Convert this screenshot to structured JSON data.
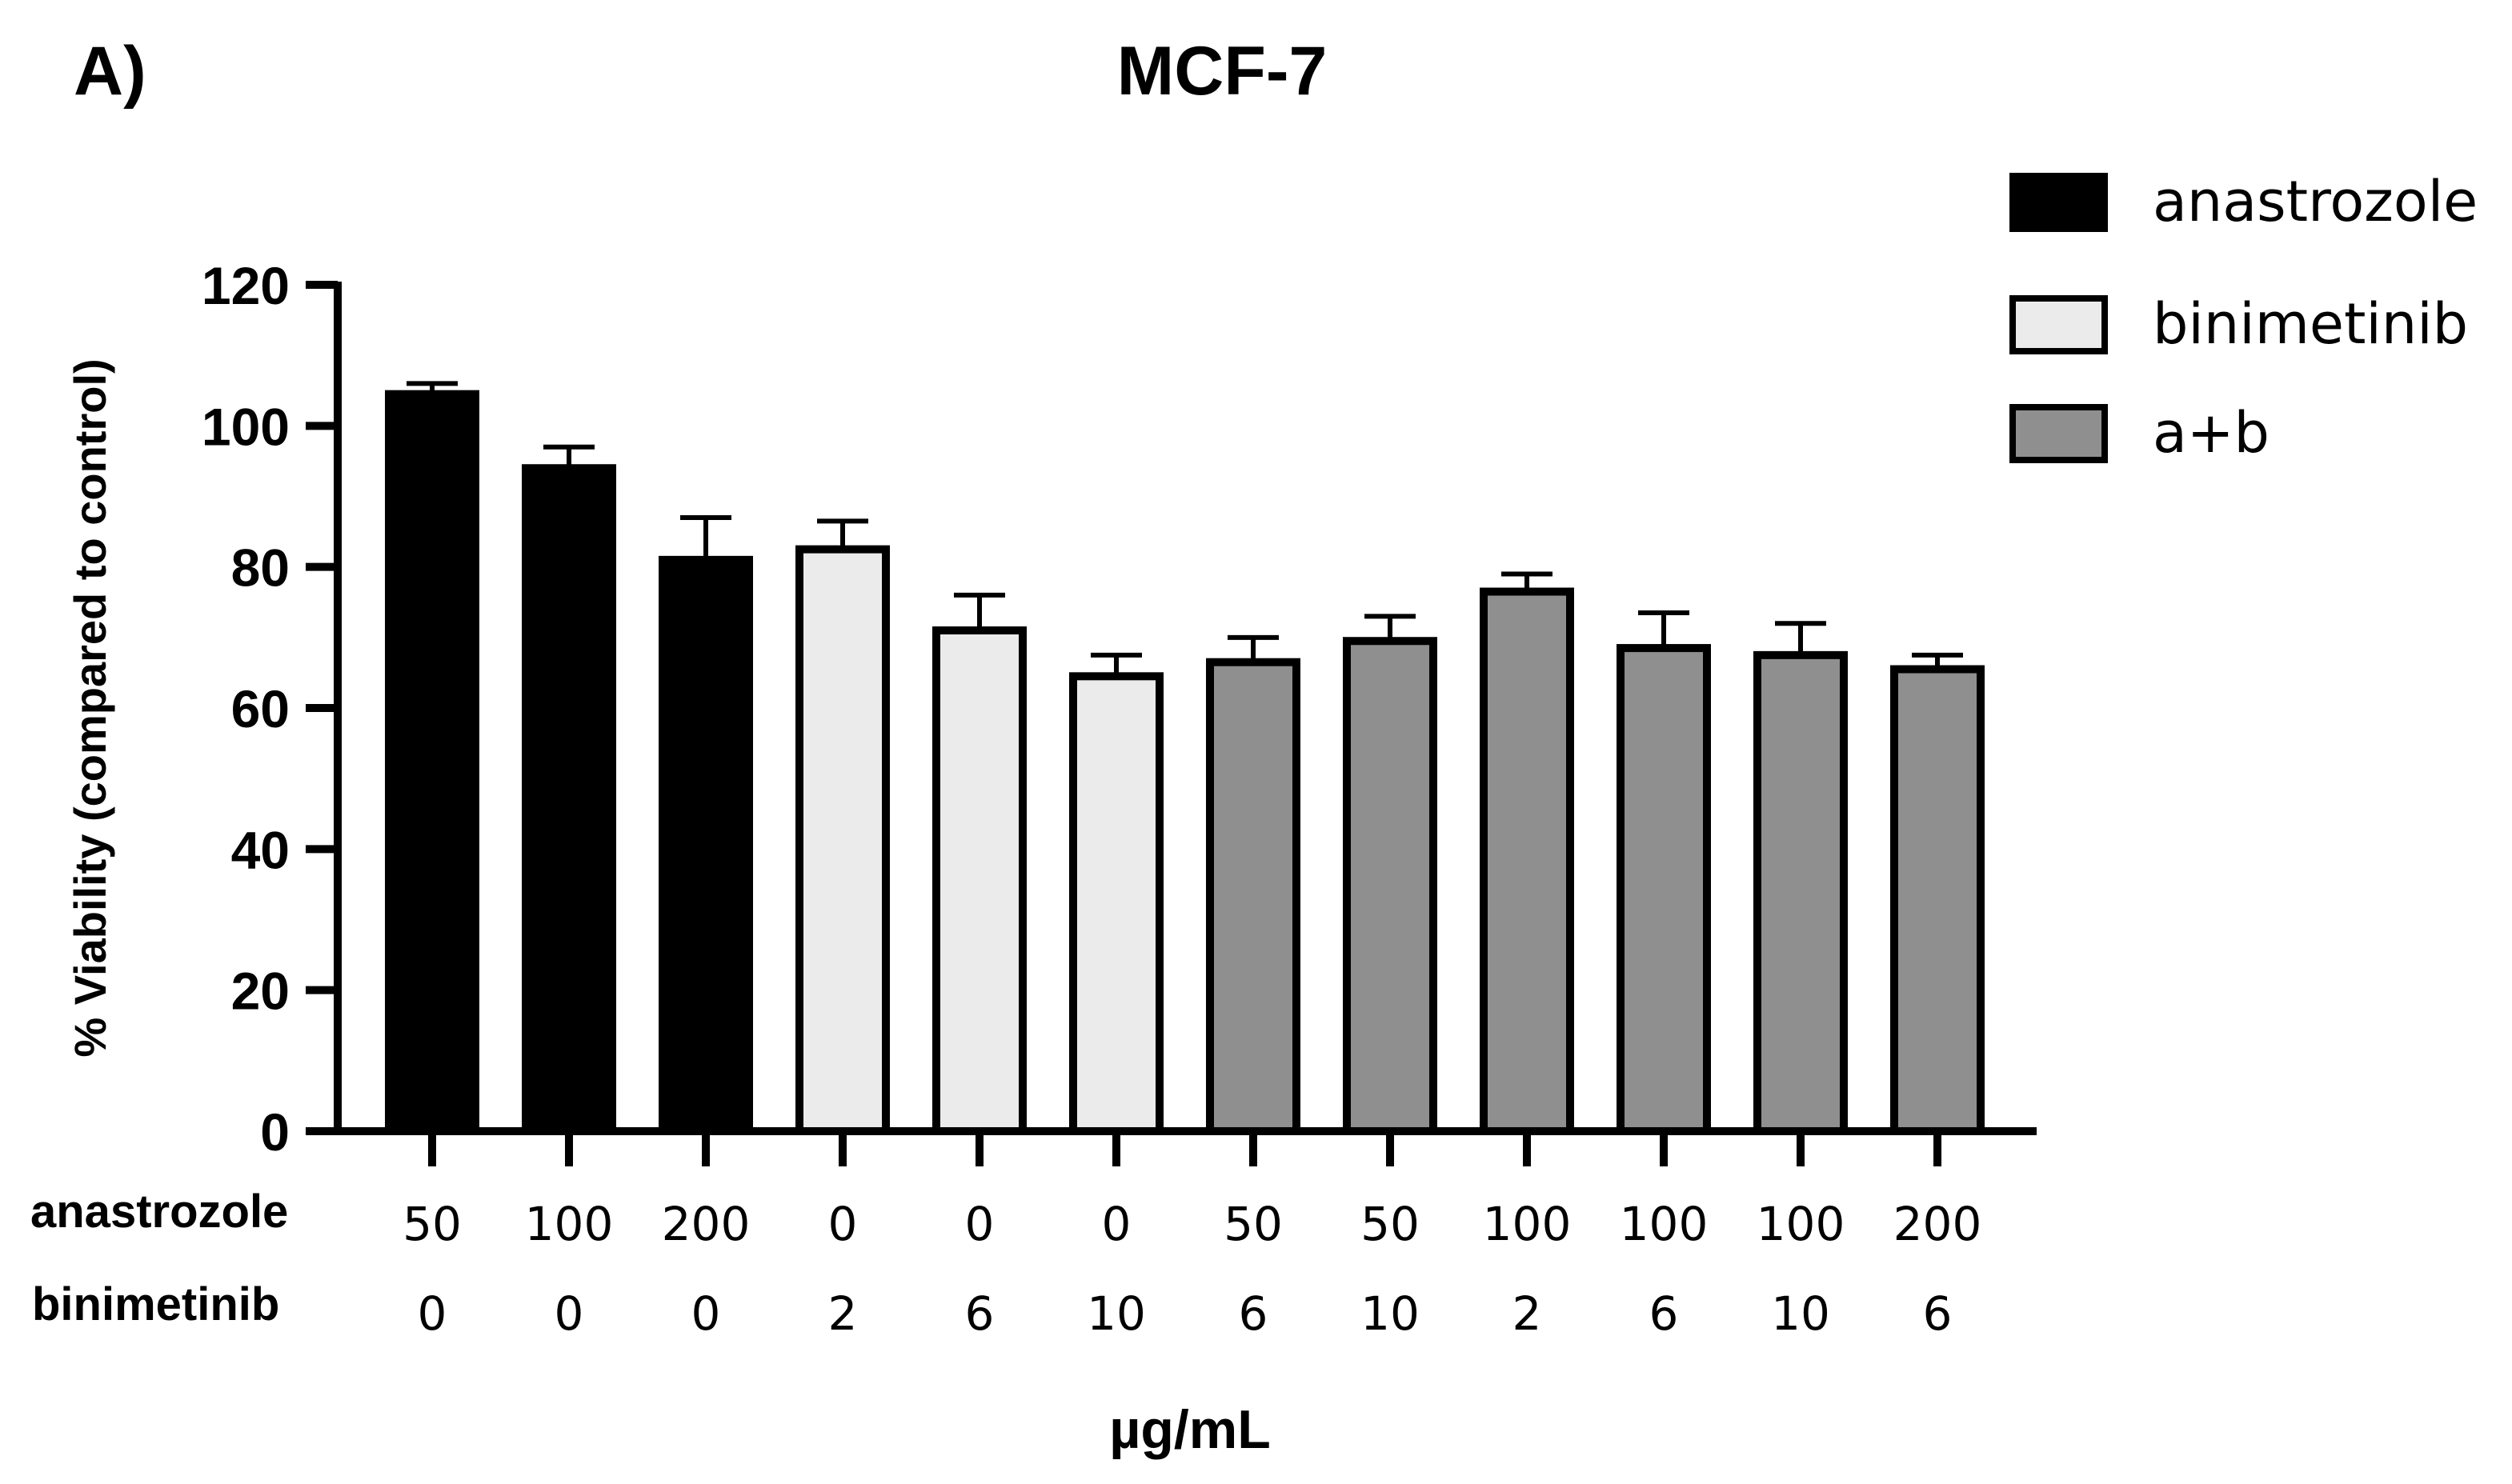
{
  "panel_label": "A)",
  "chart_data": {
    "type": "bar",
    "title": "MCF-7",
    "ylabel": "% Viability (compared to control)",
    "xlabel": "µg/mL",
    "ylim": [
      0,
      120
    ],
    "yticks": [
      "0",
      "20",
      "40",
      "60",
      "80",
      "100",
      "120"
    ],
    "row_labels": [
      "anastrozole",
      "binimetinib"
    ],
    "categories": [
      {
        "anastrozole": "50",
        "binimetinib": "0"
      },
      {
        "anastrozole": "100",
        "binimetinib": "0"
      },
      {
        "anastrozole": "200",
        "binimetinib": "0"
      },
      {
        "anastrozole": "0",
        "binimetinib": "2"
      },
      {
        "anastrozole": "0",
        "binimetinib": "6"
      },
      {
        "anastrozole": "0",
        "binimetinib": "10"
      },
      {
        "anastrozole": "50",
        "binimetinib": "6"
      },
      {
        "anastrozole": "50",
        "binimetinib": "10"
      },
      {
        "anastrozole": "100",
        "binimetinib": "2"
      },
      {
        "anastrozole": "100",
        "binimetinib": "6"
      },
      {
        "anastrozole": "100",
        "binimetinib": "10"
      },
      {
        "anastrozole": "200",
        "binimetinib": "6"
      }
    ],
    "values": [
      104.5,
      94,
      81,
      82.5,
      71,
      64.5,
      66.5,
      69.5,
      76.5,
      68.5,
      67.5,
      65.5
    ],
    "errors": [
      1.5,
      3,
      6,
      4,
      5,
      3,
      3.5,
      3.5,
      2.5,
      5,
      4.5,
      2
    ],
    "groups": [
      0,
      0,
      0,
      1,
      1,
      1,
      2,
      2,
      2,
      2,
      2,
      2
    ],
    "series": [
      {
        "name": "anastrozole",
        "color": "#000000"
      },
      {
        "name": "binimetinib",
        "color": "#ebebeb"
      },
      {
        "name": "a+b",
        "color": "#8f8f8f"
      }
    ],
    "legend_position": "top-right",
    "grid": false
  }
}
